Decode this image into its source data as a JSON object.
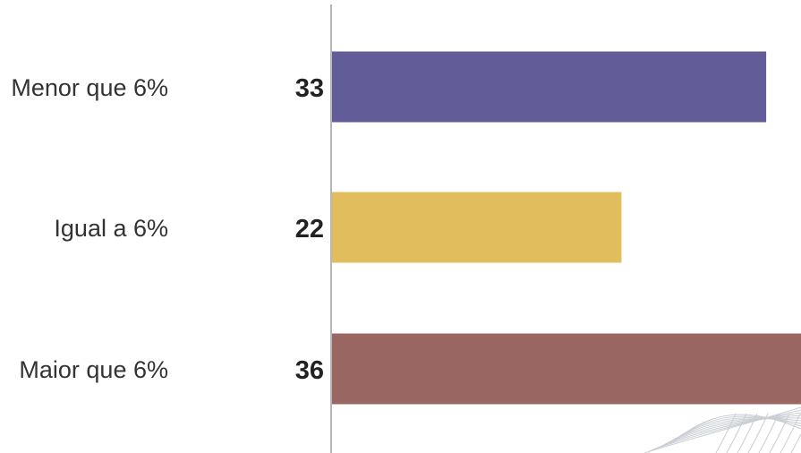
{
  "chart_data": {
    "type": "bar",
    "orientation": "horizontal",
    "categories": [
      "Menor que 6%",
      "Igual a 6%",
      "Maior que 6%"
    ],
    "values": [
      33,
      22,
      36
    ],
    "colors": [
      "#625d98",
      "#e2bd5d",
      "#996662"
    ],
    "title": "",
    "xlabel": "",
    "ylabel": "",
    "grid": false,
    "legend": "none"
  }
}
